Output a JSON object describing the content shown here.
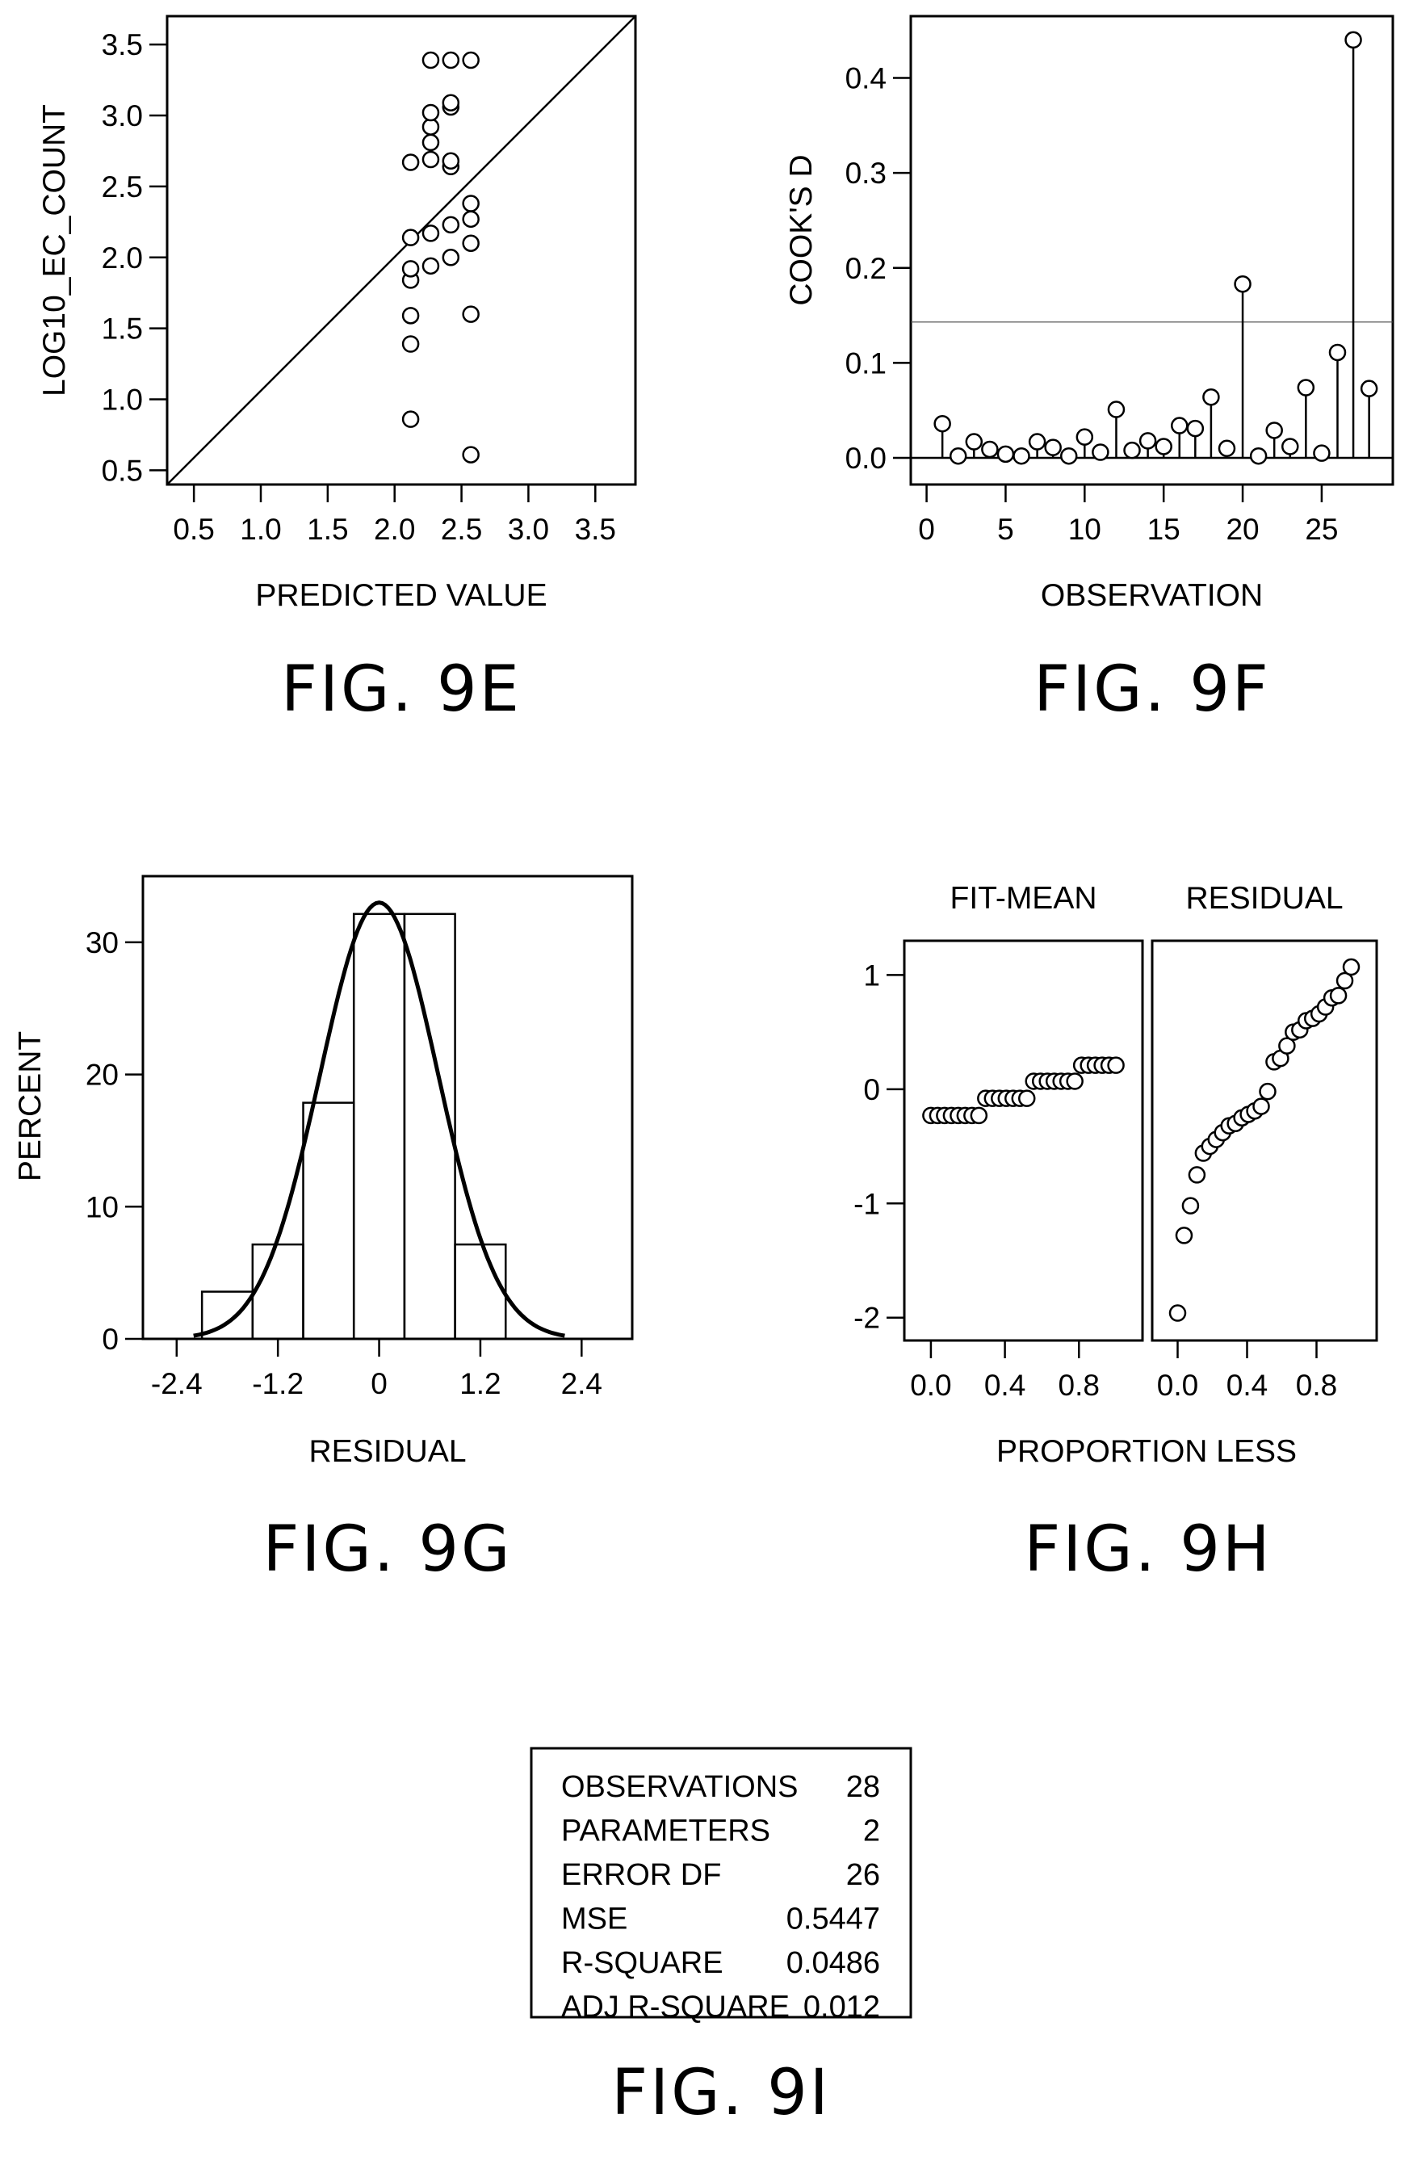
{
  "chart_data": [
    {
      "type": "scatter",
      "figure_label": "FIG. 9E",
      "xlabel": "PREDICTED VALUE",
      "ylabel": "LOG10_EC_COUNT",
      "xlim": [
        0.3,
        3.8
      ],
      "ylim": [
        0.4,
        3.7
      ],
      "xticks": [
        "0.5",
        "1.0",
        "1.5",
        "2.0",
        "2.5",
        "3.0",
        "3.5"
      ],
      "yticks": [
        "0.5",
        "1.0",
        "1.5",
        "2.0",
        "2.5",
        "3.0",
        "3.5"
      ],
      "reference_line": "y = x",
      "points": [
        [
          2.12,
          0.86
        ],
        [
          2.12,
          1.39
        ],
        [
          2.12,
          1.59
        ],
        [
          2.12,
          1.84
        ],
        [
          2.12,
          1.92
        ],
        [
          2.12,
          2.14
        ],
        [
          2.12,
          2.67
        ],
        [
          2.27,
          1.94
        ],
        [
          2.27,
          2.17
        ],
        [
          2.27,
          2.69
        ],
        [
          2.27,
          2.81
        ],
        [
          2.27,
          2.92
        ],
        [
          2.27,
          3.02
        ],
        [
          2.27,
          3.39
        ],
        [
          2.42,
          2.0
        ],
        [
          2.42,
          2.23
        ],
        [
          2.42,
          2.64
        ],
        [
          2.42,
          2.68
        ],
        [
          2.42,
          3.06
        ],
        [
          2.42,
          3.09
        ],
        [
          2.42,
          3.39
        ],
        [
          2.57,
          0.61
        ],
        [
          2.57,
          1.6
        ],
        [
          2.57,
          2.1
        ],
        [
          2.57,
          2.27
        ],
        [
          2.57,
          2.38
        ],
        [
          2.57,
          3.39
        ]
      ]
    },
    {
      "type": "scatter",
      "subtype": "needle",
      "figure_label": "FIG. 9F",
      "xlabel": "OBSERVATION",
      "ylabel": "COOK'S D",
      "xlim": [
        -1,
        29.5
      ],
      "ylim": [
        -0.028,
        0.465
      ],
      "xticks": [
        "0",
        "5",
        "10",
        "15",
        "20",
        "25"
      ],
      "yticks": [
        "0.0",
        "0.1",
        "0.2",
        "0.3",
        "0.4"
      ],
      "threshold": 0.143,
      "x": [
        1,
        2,
        3,
        4,
        5,
        6,
        7,
        8,
        9,
        10,
        11,
        12,
        13,
        14,
        15,
        16,
        17,
        18,
        19,
        20,
        21,
        22,
        23,
        24,
        25,
        26,
        27,
        28
      ],
      "values": [
        0.036,
        0.002,
        0.017,
        0.009,
        0.004,
        0.002,
        0.017,
        0.011,
        0.002,
        0.022,
        0.006,
        0.051,
        0.008,
        0.018,
        0.012,
        0.034,
        0.031,
        0.064,
        0.01,
        0.183,
        0.002,
        0.029,
        0.012,
        0.074,
        0.005,
        0.111,
        0.44,
        0.073
      ]
    },
    {
      "type": "bar",
      "subtype": "histogram",
      "figure_label": "FIG. 9G",
      "xlabel": "RESIDUAL",
      "ylabel": "PERCENT",
      "xlim": [
        -2.8,
        3.0
      ],
      "ylim": [
        0,
        35
      ],
      "xticks": [
        "-2.4",
        "-1.2",
        "0",
        "1.2",
        "2.4"
      ],
      "yticks": [
        "0",
        "10",
        "20",
        "30"
      ],
      "bin_edges": [
        -2.1,
        -1.5,
        -0.9,
        -0.3,
        0.3,
        0.9,
        1.5
      ],
      "values": [
        3.57,
        7.14,
        17.86,
        32.14,
        32.14,
        7.14
      ],
      "normal_curve": {
        "mean": 0,
        "sd": 0.7,
        "range": [
          -2.2,
          2.2
        ]
      }
    },
    {
      "type": "scatter",
      "subtype": "spread-location",
      "figure_label": "FIG. 9H",
      "xlabel": "PROPORTION LESS",
      "panels": [
        "FIT-MEAN",
        "RESIDUAL"
      ],
      "xlim": [
        -0.1,
        1.1
      ],
      "ylim": [
        -2.2,
        1.3
      ],
      "xticks": [
        "0.0",
        "0.4",
        "0.8"
      ],
      "yticks": [
        "1",
        "0",
        "-1",
        "-2"
      ],
      "fit_mean": [
        -0.23,
        -0.23,
        -0.23,
        -0.23,
        -0.23,
        -0.23,
        -0.23,
        -0.23,
        -0.08,
        -0.08,
        -0.08,
        -0.08,
        -0.08,
        -0.08,
        -0.08,
        0.07,
        0.07,
        0.07,
        0.07,
        0.07,
        0.07,
        0.07,
        0.21,
        0.21,
        0.21,
        0.21,
        0.21,
        0.21
      ],
      "residual": [
        -1.96,
        -1.28,
        -1.02,
        -0.75,
        -0.56,
        -0.5,
        -0.44,
        -0.38,
        -0.32,
        -0.3,
        -0.25,
        -0.22,
        -0.19,
        -0.15,
        -0.02,
        0.24,
        0.27,
        0.38,
        0.5,
        0.52,
        0.6,
        0.62,
        0.66,
        0.72,
        0.8,
        0.82,
        0.95,
        1.07
      ]
    },
    {
      "type": "table",
      "figure_label": "FIG. 9I",
      "rows": [
        [
          "OBSERVATIONS",
          "28"
        ],
        [
          "PARAMETERS",
          "2"
        ],
        [
          "ERROR DF",
          "26"
        ],
        [
          "MSE",
          "0.5447"
        ],
        [
          "R-SQUARE",
          "0.0486"
        ],
        [
          "ADJ R-SQUARE",
          "0.012"
        ]
      ]
    }
  ]
}
